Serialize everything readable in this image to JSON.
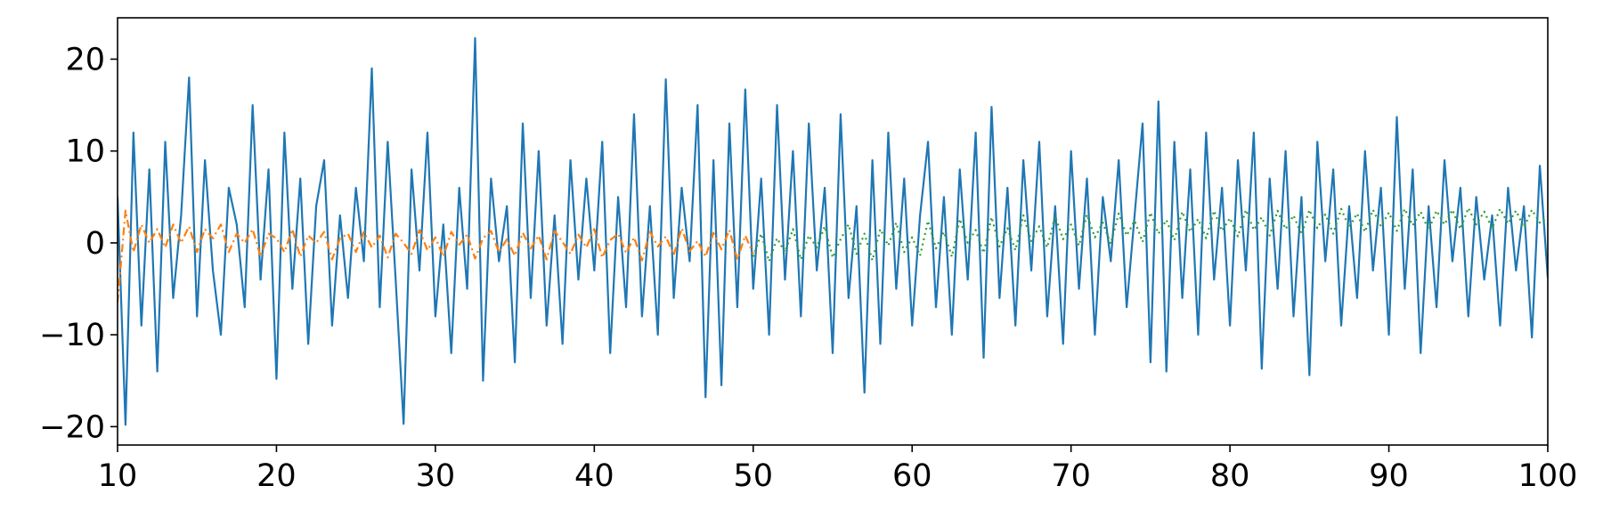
{
  "chart_data": {
    "type": "line",
    "xlim": [
      10,
      100
    ],
    "ylim": [
      -22,
      24.5
    ],
    "xticks": [
      10,
      20,
      30,
      40,
      50,
      60,
      70,
      80,
      90,
      100
    ],
    "yticks": [
      {
        "value": -20,
        "label": "−20"
      },
      {
        "value": -10,
        "label": "−10"
      },
      0,
      10,
      20
    ],
    "grid": false,
    "series": [
      {
        "color": "#1f77b4",
        "linestyle": "solid",
        "x": [
          10,
          10.5,
          11,
          11.5,
          12,
          12.5,
          13,
          13.5,
          14,
          14.5,
          15,
          15.5,
          16,
          16.5,
          17,
          17.5,
          18,
          18.5,
          19,
          19.5,
          20,
          20.5,
          21,
          21.5,
          22,
          22.5,
          23,
          23.5,
          24,
          24.5,
          25,
          25.5,
          26,
          26.5,
          27,
          27.5,
          28,
          28.5,
          29,
          29.5,
          30,
          30.5,
          31,
          31.5,
          32,
          32.5,
          33,
          33.5,
          34,
          34.5,
          35,
          35.5,
          36,
          36.5,
          37,
          37.5,
          38,
          38.5,
          39,
          39.5,
          40,
          40.5,
          41,
          41.5,
          42,
          42.5,
          43,
          43.5,
          44,
          44.5,
          45,
          45.5,
          46,
          46.5,
          47,
          47.5,
          48,
          48.5,
          49,
          49.5,
          50,
          50.5,
          51,
          51.5,
          52,
          52.5,
          53,
          53.5,
          54,
          54.5,
          55,
          55.5,
          56,
          56.5,
          57,
          57.5,
          58,
          58.5,
          59,
          59.5,
          60,
          60.5,
          61,
          61.5,
          62,
          62.5,
          63,
          63.5,
          64,
          64.5,
          65,
          65.5,
          66,
          66.5,
          67,
          67.5,
          68,
          68.5,
          69,
          69.5,
          70,
          70.5,
          71,
          71.5,
          72,
          72.5,
          73,
          73.5,
          74,
          74.5,
          75,
          75.5,
          76,
          76.5,
          77,
          77.5,
          78,
          78.5,
          79,
          79.5,
          80,
          80.5,
          81,
          81.5,
          82,
          82.5,
          83,
          83.5,
          84,
          84.5,
          85,
          85.5,
          86,
          86.5,
          87,
          87.5,
          88,
          88.5,
          89,
          89.5,
          90,
          90.5,
          91,
          91.5,
          92,
          92.5,
          93,
          93.5,
          94,
          94.5,
          95,
          95.5,
          96,
          96.5,
          97,
          97.5,
          98,
          98.5,
          99,
          99.5,
          100
        ],
        "values": [
          5,
          -19.8,
          12,
          -9,
          8,
          -14,
          11,
          -6,
          3,
          18,
          -8,
          9,
          -3,
          -10,
          6,
          2,
          -7,
          15,
          -4,
          8,
          -14.8,
          12,
          -5,
          7,
          -11,
          4,
          9,
          -9,
          3,
          -6,
          6,
          -2,
          19,
          -7,
          11,
          -4,
          -19.7,
          8,
          -3,
          12,
          -8,
          2,
          -12,
          6,
          -5,
          22.3,
          -15,
          7,
          -2,
          4,
          -13,
          13,
          -6,
          10,
          -9,
          3,
          -11,
          9,
          -4,
          7,
          -3,
          11,
          -12,
          5,
          -7,
          14,
          -8,
          4,
          -10,
          17.8,
          -6,
          6,
          -2,
          15,
          -16.8,
          9,
          -15.5,
          13,
          -7,
          16.7,
          -5,
          7,
          -10,
          15,
          -4,
          10,
          -8,
          13,
          -3,
          6,
          -12,
          14,
          -6,
          4,
          -16.3,
          9,
          -11,
          12,
          -5,
          7,
          -9,
          3,
          11,
          -7,
          5,
          -10,
          8,
          -4,
          12,
          -12.5,
          14.8,
          -6,
          6,
          -9,
          9,
          -3,
          11,
          -8,
          4,
          -11,
          10,
          -5,
          7,
          -10,
          5,
          -2,
          9,
          -7,
          3,
          13,
          -13,
          15.4,
          -14,
          11,
          -6,
          8,
          -10,
          12,
          -4,
          6,
          -9,
          9,
          -3,
          12,
          -13.7,
          7,
          -5,
          10,
          -8,
          5,
          -14.4,
          11,
          -2,
          8,
          -9,
          4,
          -6,
          10,
          -3,
          6,
          -10,
          13.7,
          -5,
          8,
          -12,
          4,
          -7,
          9,
          -2,
          6,
          -8,
          5,
          -4,
          3,
          -9,
          6,
          -3,
          4,
          -10.3,
          8.4,
          -3.8
        ]
      },
      {
        "color": "#ff7f0e",
        "linestyle": "dashdot",
        "x": [
          10,
          10.5,
          11,
          11.5,
          12,
          12.5,
          13,
          13.5,
          14,
          14.5,
          15,
          15.5,
          16,
          16.5,
          17,
          17.5,
          18,
          18.5,
          19,
          19.5,
          20,
          20.5,
          21,
          21.5,
          22,
          22.5,
          23,
          23.5,
          24,
          24.5,
          25,
          25.5,
          26,
          26.5,
          27,
          27.5,
          28,
          28.5,
          29,
          29.5,
          30,
          30.5,
          31,
          31.5,
          32,
          32.5,
          33,
          33.5,
          34,
          34.5,
          35,
          35.5,
          36,
          36.5,
          37,
          37.5,
          38,
          38.5,
          39,
          39.5,
          40,
          40.5,
          41,
          41.5,
          42,
          42.5,
          43,
          43.5,
          44,
          44.5,
          45,
          45.5,
          46,
          46.5,
          47,
          47.5,
          48,
          48.5,
          49,
          49.5,
          50
        ],
        "values": [
          -6.5,
          3.5,
          -1,
          2,
          0,
          1.5,
          -0.5,
          2,
          0,
          1.8,
          -1,
          1.5,
          0.5,
          2,
          -1,
          1,
          0,
          1.5,
          -1.5,
          1,
          0.5,
          -1,
          1.5,
          -1.5,
          0.8,
          0,
          1.2,
          -1.8,
          0.5,
          1,
          -1,
          1.2,
          -0.5,
          0.8,
          -1.6,
          1,
          0,
          -1.2,
          1.4,
          -0.8,
          0.6,
          -1.5,
          1.2,
          -0.2,
          0.9,
          -1.7,
          0.5,
          1.3,
          -1,
          0.4,
          -1.4,
          1.1,
          -0.6,
          0.8,
          -1.8,
          1.3,
          0.1,
          -1.2,
          0.9,
          -0.5,
          1.5,
          -1.6,
          0.3,
          1,
          -1.1,
          0.6,
          -1.9,
          1.2,
          -0.4,
          0.7,
          -1.3,
          1.6,
          -0.9,
          0.2,
          -1.5,
          1.1,
          -0.7,
          1.4,
          -1.8,
          0.8,
          -1.2
        ]
      },
      {
        "color": "#2ca02c",
        "linestyle": "dotted",
        "x": [
          50,
          50.5,
          51,
          51.5,
          52,
          52.5,
          53,
          53.5,
          54,
          54.5,
          55,
          55.5,
          56,
          56.5,
          57,
          57.5,
          58,
          58.5,
          59,
          59.5,
          60,
          60.5,
          61,
          61.5,
          62,
          62.5,
          63,
          63.5,
          64,
          64.5,
          65,
          65.5,
          66,
          66.5,
          67,
          67.5,
          68,
          68.5,
          69,
          69.5,
          70,
          70.5,
          71,
          71.5,
          72,
          72.5,
          73,
          73.5,
          74,
          74.5,
          75,
          75.5,
          76,
          76.5,
          77,
          77.5,
          78,
          78.5,
          79,
          79.5,
          80,
          80.5,
          81,
          81.5,
          82,
          82.5,
          83,
          83.5,
          84,
          84.5,
          85,
          85.5,
          86,
          86.5,
          87,
          87.5,
          88,
          88.5,
          89,
          89.5,
          90,
          90.5,
          91,
          91.5,
          92,
          92.5,
          93,
          93.5,
          94,
          94.5,
          95,
          95.5,
          96,
          96.5,
          97,
          97.5,
          98,
          98.5,
          99,
          99.5,
          100
        ],
        "values": [
          -1.5,
          1,
          -2,
          0.5,
          -1,
          1.5,
          -1.8,
          0.8,
          -0.5,
          1.8,
          -1.6,
          0.4,
          2,
          -1.2,
          1,
          -1.9,
          1.5,
          -0.3,
          2.2,
          -1,
          0.6,
          -1.4,
          2.4,
          -0.6,
          1.2,
          -1.5,
          2.6,
          0,
          1.4,
          -1.1,
          2.8,
          -0.4,
          1.6,
          -0.8,
          3,
          0.2,
          1.8,
          -0.5,
          2.9,
          0.4,
          2,
          -0.3,
          3.1,
          0.6,
          2.2,
          -0.1,
          3.2,
          0.8,
          2.4,
          0.1,
          3.3,
          1,
          2.5,
          0.3,
          3.4,
          1.2,
          2.6,
          0.5,
          3.5,
          1.3,
          2.7,
          0.7,
          3.6,
          1.4,
          2.8,
          0.8,
          3.5,
          1.5,
          3,
          0.9,
          3.6,
          1.6,
          3.1,
          1,
          3.7,
          1.7,
          3.2,
          1.2,
          3.6,
          1.8,
          3.3,
          1.3,
          3.7,
          1.9,
          3.4,
          1.4,
          3.5,
          2,
          3.6,
          1.5,
          3.8,
          2,
          3.4,
          1.6,
          3.7,
          2.1,
          3.5,
          1.7,
          3.6,
          2.2,
          2.8
        ]
      }
    ]
  }
}
